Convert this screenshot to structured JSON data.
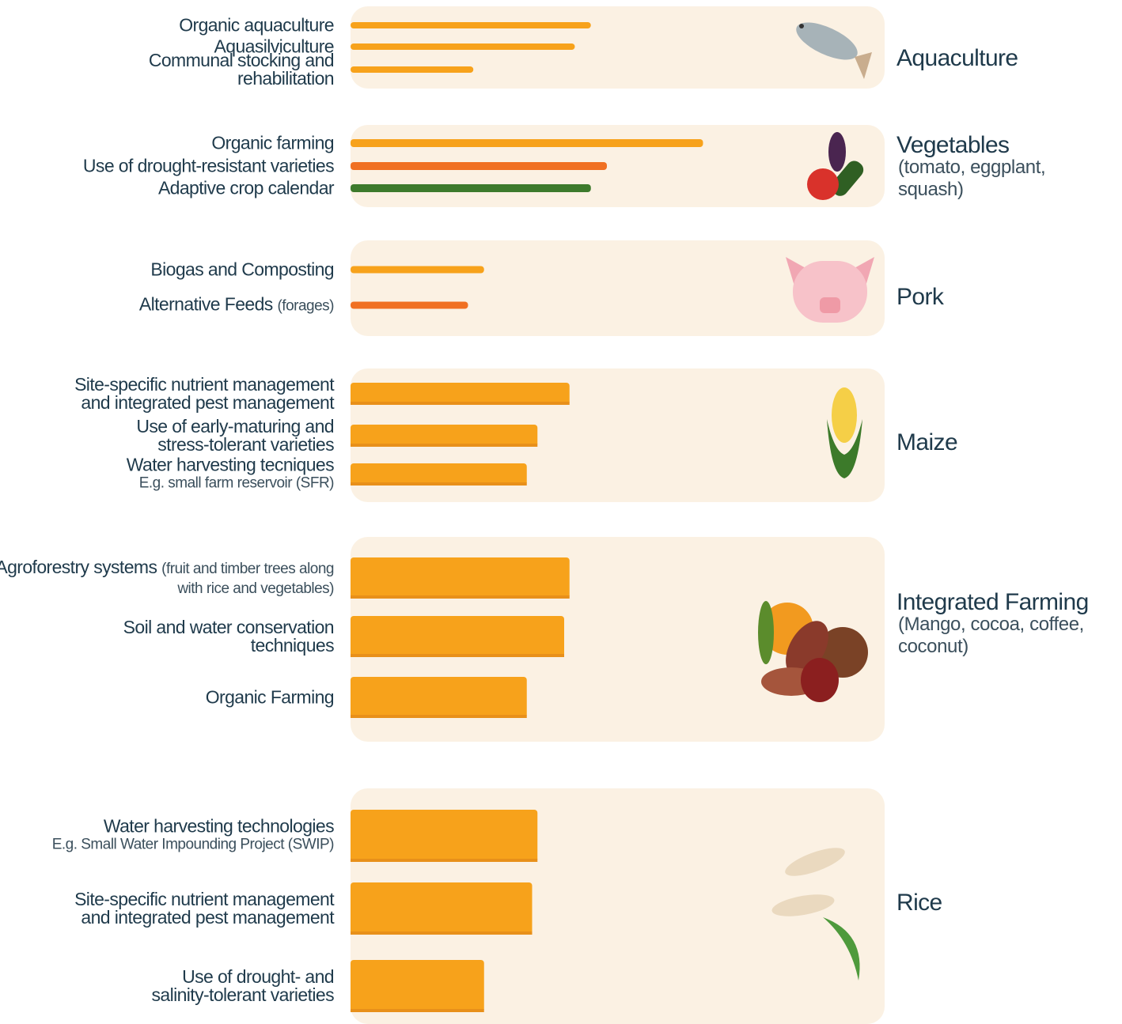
{
  "chart_data": [
    {
      "type": "bar",
      "orientation": "horizontal",
      "title": "Aquaculture",
      "categories": [
        [
          "Organic aquaculture"
        ],
        [
          "Aquasilviculture"
        ],
        [
          "Communal stocking and",
          "rehabilitation"
        ]
      ],
      "values": [
        45,
        42,
        23
      ],
      "colors": [
        "#f7a21b",
        "#f7a21b",
        "#f7a21b"
      ],
      "xlim": [
        0,
        100
      ]
    },
    {
      "type": "bar",
      "orientation": "horizontal",
      "title": "Vegetables",
      "subtitle": [
        "(tomato, eggplant,",
        "squash)"
      ],
      "categories": [
        [
          "Organic farming"
        ],
        [
          "Use of drought-resistant varieties"
        ],
        [
          "Adaptive crop calendar"
        ]
      ],
      "values": [
        66,
        48,
        45
      ],
      "colors": [
        "#f7a21b",
        "#f07022",
        "#3d7a2c"
      ],
      "xlim": [
        0,
        100
      ]
    },
    {
      "type": "bar",
      "orientation": "horizontal",
      "title": "Pork",
      "categories": [
        [
          "Biogas and Composting"
        ],
        [
          "Alternative Feeds"
        ]
      ],
      "notes": [
        null,
        "(forages)"
      ],
      "values": [
        25,
        22
      ],
      "colors": [
        "#f7a21b",
        "#f07022"
      ],
      "xlim": [
        0,
        100
      ]
    },
    {
      "type": "bar",
      "orientation": "horizontal",
      "title": "Maize",
      "categories": [
        [
          "Site-specific nutrient management",
          "and integrated pest management"
        ],
        [
          "Use of early-maturing and",
          "stress-tolerant varieties"
        ],
        [
          "Water harvesting tecniques"
        ]
      ],
      "notes": [
        null,
        null,
        "E.g. small farm reservoir (SFR)"
      ],
      "values": [
        41,
        35,
        33
      ],
      "colors": [
        "#f7a21b",
        "#f7a21b",
        "#f7a21b"
      ],
      "xlim": [
        0,
        100
      ]
    },
    {
      "type": "bar",
      "orientation": "horizontal",
      "title": "Integrated Farming",
      "subtitle": [
        "(Mango, cocoa, coffee,",
        "coconut)"
      ],
      "categories": [
        [
          "Agroforestry systems"
        ],
        [
          "Soil and water conservation",
          "techniques"
        ],
        [
          "Organic Farming"
        ]
      ],
      "notes": [
        "(fruit and timber trees along with rice and vegetables)",
        null,
        null
      ],
      "values": [
        41,
        40,
        33
      ],
      "colors": [
        "#f7a21b",
        "#f7a21b",
        "#f7a21b"
      ],
      "xlim": [
        0,
        100
      ]
    },
    {
      "type": "bar",
      "orientation": "horizontal",
      "title": "Rice",
      "categories": [
        [
          "Water harvesting technologies"
        ],
        [
          "Site-specific nutrient management",
          "and integrated pest management"
        ],
        [
          "Use of drought- and",
          "salinity-tolerant varieties"
        ]
      ],
      "notes": [
        "E.g. Small Water Impounding Project  (SWIP)",
        null,
        null
      ],
      "values": [
        35,
        34,
        25
      ],
      "colors": [
        "#f7a21b",
        "#f7a21b",
        "#f7a21b"
      ],
      "xlim": [
        0,
        100
      ]
    }
  ]
}
